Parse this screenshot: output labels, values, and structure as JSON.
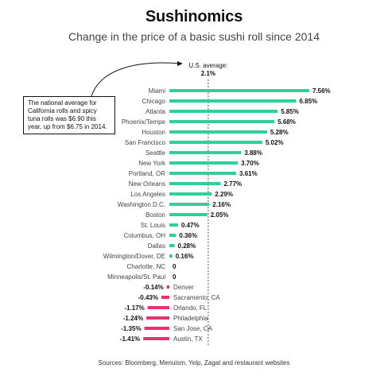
{
  "page": {
    "title": "Sushinomics",
    "subtitle": "Change in the price of a basic sushi roll since 2014",
    "source": "Sources: Bloomberg, Menuism, Yelp, Zagat and restaurant websites",
    "annotation": "The national average for California rolls and spicy tuna rolls was $6.90 this year, up from $6.75 in 2014."
  },
  "colors": {
    "positive": "#2fcf98",
    "negative": "#e6336b",
    "text": "#111111"
  },
  "chart_data": {
    "type": "bar",
    "orientation": "horizontal",
    "title": "Sushinomics",
    "subtitle": "Change in the price of a basic sushi roll since 2014",
    "unit": "%",
    "reference_line": {
      "label": "U.S. average:",
      "value_label": "2.1%",
      "value": 2.1
    },
    "categories": [
      "Miami",
      "Chicago",
      "Atlanta",
      "Phoenix/Tempe",
      "Houston",
      "San Francisco",
      "Seattle",
      "New York",
      "Portland, OR",
      "New Orleans",
      "Los Angeles",
      "Washington D.C.",
      "Boston",
      "St. Louis",
      "Columbus, OH",
      "Dallas",
      "Wilmington/Dover, DE",
      "Charlotte, NC",
      "Minneapolis/St. Paul",
      "Denver",
      "Sacramento, CA",
      "Orlando, FL",
      "Philadelphia",
      "San Jose, CA",
      "Austin, TX"
    ],
    "values": [
      7.56,
      6.85,
      5.85,
      5.68,
      5.28,
      5.02,
      3.88,
      3.7,
      3.61,
      2.77,
      2.29,
      2.16,
      2.05,
      0.47,
      0.36,
      0.28,
      0.16,
      0,
      0,
      -0.14,
      -0.43,
      -1.17,
      -1.24,
      -1.35,
      -1.41
    ],
    "value_labels": [
      "7.56%",
      "6.85%",
      "5.85%",
      "5.68%",
      "5.28%",
      "5.02%",
      "3.88%",
      "3.70%",
      "3.61%",
      "2.77%",
      "2.29%",
      "2.16%",
      "2.05%",
      "0.47%",
      "0.36%",
      "0.28%",
      "0.16%",
      "0",
      "0",
      "-0.14%",
      "-0.43%",
      "-1.17%",
      "-1.24%",
      "-1.35%",
      "-1.41%"
    ],
    "xlabel": "",
    "ylabel": "",
    "grid": false
  }
}
